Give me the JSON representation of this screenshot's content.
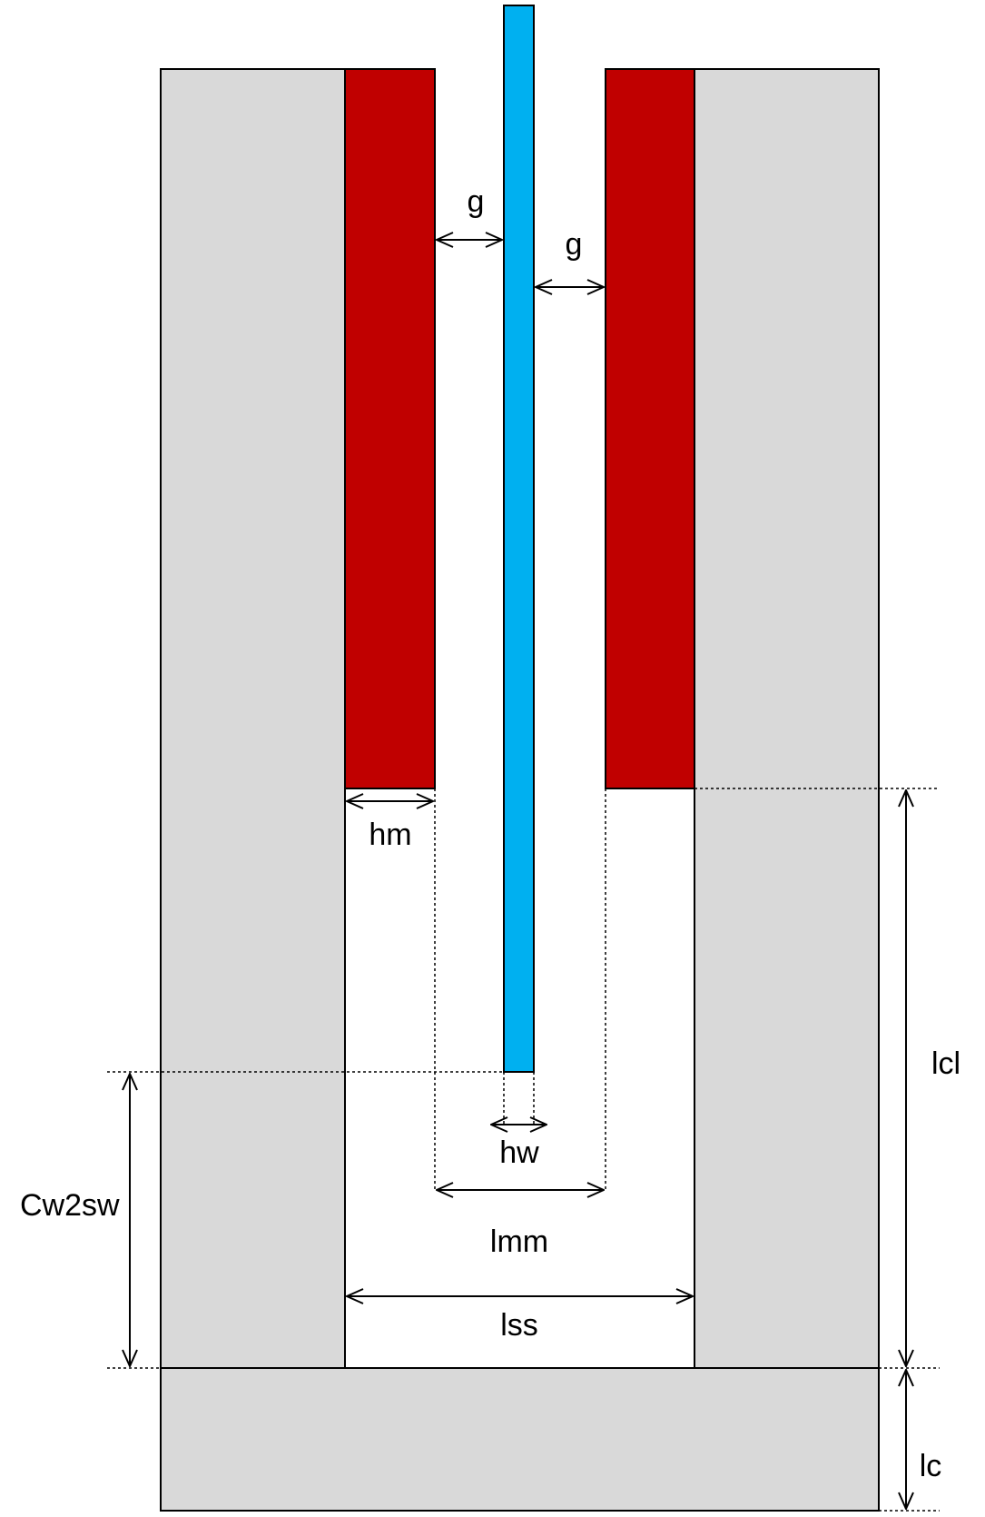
{
  "labels": {
    "g_left": "g",
    "g_right": "g",
    "hm": "hm",
    "hw": "hw",
    "lmm": "lmm",
    "lss": "lss",
    "lcl": "lcl",
    "lc": "lc",
    "cw2sw": "Cw2sw"
  },
  "colors": {
    "core": "#d9d9d9",
    "magnet": "#c00000",
    "winding": "#00b0f0",
    "outline": "#000000",
    "background": "#ffffff"
  }
}
